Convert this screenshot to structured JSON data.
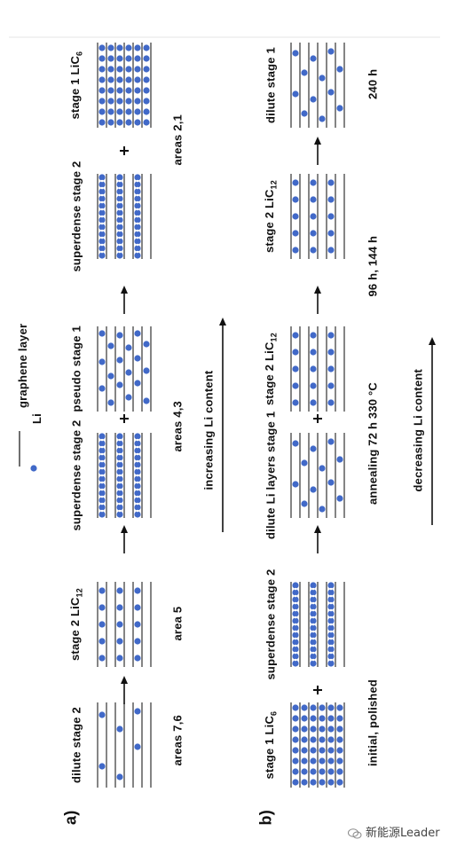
{
  "legend": {
    "graphene_layer": "graphene layer",
    "li": "Li"
  },
  "panel_a": {
    "tag": "a)",
    "arrow_caption": "increasing Li content",
    "stages": [
      {
        "base": "dilute stage 2",
        "sub": "",
        "pattern": "dilute",
        "group": "areas 7,6"
      },
      {
        "base": "stage 2 LiC",
        "sub": "12",
        "pattern": "stage2",
        "group": "area 5"
      },
      {
        "base": "superdense stage 2",
        "sub": "",
        "pattern": "superdense",
        "group": "areas 4,3"
      },
      {
        "base": "pseudo stage 1",
        "sub": "",
        "pattern": "pseudo",
        "group": "areas 4,3"
      },
      {
        "base": "superdense stage 2",
        "sub": "",
        "pattern": "superdense",
        "group": "areas 2,1"
      },
      {
        "base": "stage 1 LiC",
        "sub": "6",
        "pattern": "stage1",
        "group": "areas 2,1"
      }
    ],
    "connectors": [
      "→",
      "→",
      "+",
      "→",
      "+"
    ],
    "group_labels": [
      "areas 7,6",
      "area 5",
      "areas 4,3",
      "areas 2,1"
    ]
  },
  "panel_b": {
    "tag": "b)",
    "arrow_caption": "decreasing Li content",
    "stages": [
      {
        "base": "stage 1 LiC",
        "sub": "6",
        "pattern": "stage1",
        "group": "initial, polished"
      },
      {
        "base": "superdense stage 2",
        "sub": "",
        "pattern": "superdense",
        "group": "initial, polished"
      },
      {
        "base": "dilute Li layers stage 1",
        "sub": "",
        "pattern": "dilute1",
        "group": "annealing 72 h 330 °C"
      },
      {
        "base": "stage 2 LiC",
        "sub": "12",
        "pattern": "stage2",
        "group": "annealing 72 h 330 °C"
      },
      {
        "base": "stage 2 LiC",
        "sub": "12",
        "pattern": "stage2",
        "group": "96 h, 144 h"
      },
      {
        "base": "dilute stage 1",
        "sub": "",
        "pattern": "dilute1",
        "group": "240 h"
      }
    ],
    "connectors": [
      "+",
      "→",
      "+",
      "→",
      "→"
    ],
    "group_labels": [
      "initial, polished",
      "annealing 72 h 330 °C",
      "96 h, 144 h",
      "240 h"
    ]
  },
  "watermark": "新能源Leader",
  "colors": {
    "li": "#4169c8",
    "line": "#333333",
    "text": "#111111"
  }
}
